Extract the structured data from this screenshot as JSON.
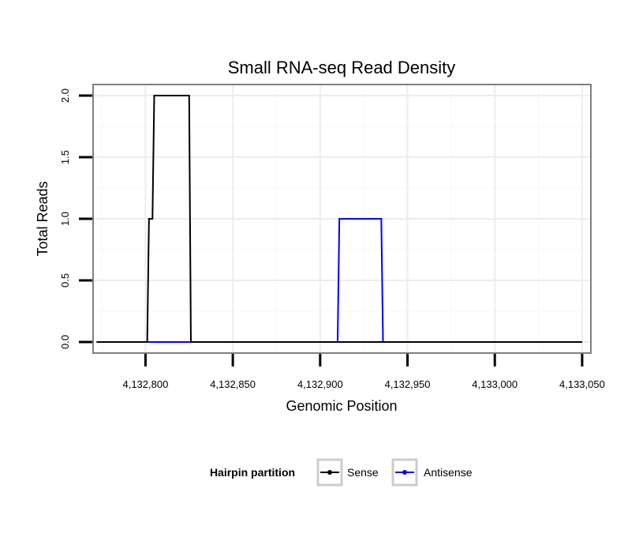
{
  "chart_data": {
    "type": "line",
    "title": "Small RNA-seq Read Density",
    "xlabel": "Genomic Position",
    "ylabel": "Total Reads",
    "xlim": [
      4132770,
      4133055
    ],
    "ylim": [
      -0.09,
      2.09
    ],
    "x_ticks": [
      4132800,
      4132850,
      4132900,
      4132950,
      4133000,
      4133050
    ],
    "x_tick_labels": [
      "4,132,800",
      "4,132,850",
      "4,132,900",
      "4,132,950",
      "4,133,000",
      "4,133,050"
    ],
    "y_ticks": [
      0,
      0.5,
      1,
      1.5,
      2
    ],
    "y_tick_labels": [
      "0.0",
      "0.5",
      "1.0",
      "1.5",
      "2.0"
    ],
    "grid": true,
    "legend": {
      "title": "Hairpin partition",
      "position": "bottom",
      "entries": [
        "Sense",
        "Antisense"
      ]
    },
    "series": [
      {
        "name": "Sense",
        "color": "#000000",
        "x": [
          4132772,
          4132801,
          4132802,
          4132803,
          4132804,
          4132805,
          4132825,
          4132826,
          4133050
        ],
        "y": [
          0,
          0,
          1,
          1,
          1,
          2,
          2,
          0,
          0
        ]
      },
      {
        "name": "Antisense",
        "color": "#0000ff",
        "x": [
          4132772,
          4132910,
          4132911,
          4132935,
          4132936,
          4133050
        ],
        "y": [
          0,
          0,
          1,
          1,
          0,
          0
        ]
      }
    ]
  }
}
